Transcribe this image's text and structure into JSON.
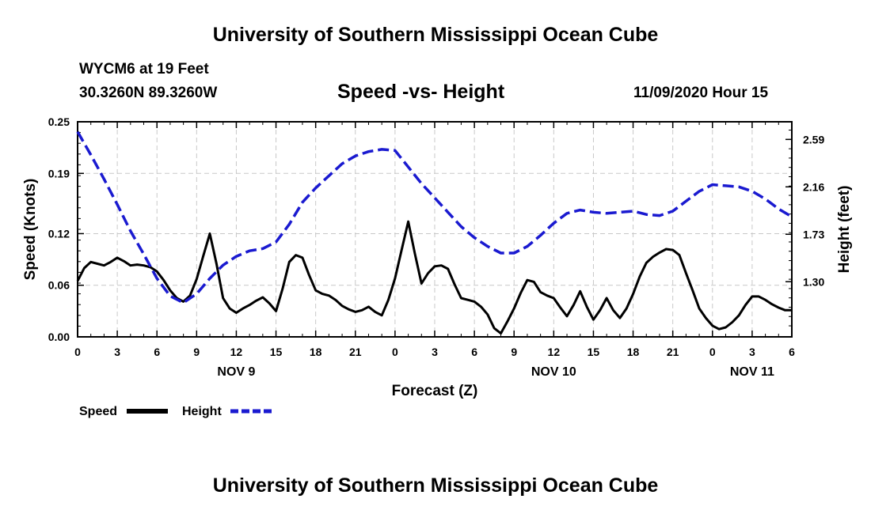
{
  "header": {
    "title": "University of Southern Mississippi Ocean Cube"
  },
  "footer": {
    "title": "University of Southern Mississippi Ocean Cube"
  },
  "station": {
    "name": "WYCM6 at 19 Feet",
    "coords": "30.3260N 89.3260W"
  },
  "chart_data": {
    "type": "line",
    "title": "Speed -vs- Height",
    "date_label": "11/09/2020 Hour 15",
    "xlabel": "Forecast (Z)",
    "ylabel_left": "Speed (Knots)",
    "ylabel_right": "Height (feet)",
    "x_range": [
      0,
      54
    ],
    "x_tick_labels": [
      "0",
      "3",
      "6",
      "9",
      "12",
      "15",
      "18",
      "21",
      "0",
      "3",
      "6",
      "9",
      "12",
      "15",
      "18",
      "21",
      "0",
      "3",
      "6"
    ],
    "date_labels": [
      {
        "label": "NOV 9",
        "hour_index": 12
      },
      {
        "label": "NOV 10",
        "hour_index": 36
      },
      {
        "label": "NOV 11",
        "hour_index": 51
      }
    ],
    "y_left": {
      "min": 0,
      "max": 0.25,
      "ticks": [
        0.0,
        0.06,
        0.12,
        0.19,
        0.25
      ],
      "tick_labels": [
        "0.00",
        "0.06",
        "0.12",
        "0.19",
        "0.25"
      ]
    },
    "y_right": {
      "min": 0.8,
      "max": 2.75,
      "ticks": [
        1.3,
        1.73,
        2.16,
        2.59
      ],
      "tick_labels": [
        "1.30",
        "1.73",
        "2.16",
        "2.59"
      ]
    },
    "grid": true,
    "legend": {
      "position": "bottom-left",
      "entries": [
        "Speed",
        "Height"
      ]
    },
    "series": [
      {
        "name": "Speed",
        "axis": "left",
        "color": "#000000",
        "style": "solid",
        "x": [
          0,
          0.5,
          1,
          1.5,
          2,
          2.5,
          3,
          3.5,
          4,
          4.5,
          5,
          5.5,
          6,
          6.5,
          7,
          7.5,
          8,
          8.5,
          9,
          9.5,
          10,
          10.5,
          11,
          11.5,
          12,
          12.5,
          13,
          13.5,
          14,
          14.5,
          15,
          15.5,
          16,
          16.5,
          17,
          17.5,
          18,
          18.5,
          19,
          19.5,
          20,
          20.5,
          21,
          21.5,
          22,
          22.5,
          23,
          23.5,
          24,
          24.5,
          25,
          25.5,
          26,
          26.5,
          27,
          27.5,
          28,
          28.5,
          29,
          29.5,
          30,
          30.5,
          31,
          31.5,
          32,
          32.5,
          33,
          33.5,
          34,
          34.5,
          35,
          35.5,
          36,
          36.5,
          37,
          37.5,
          38,
          38.5,
          39,
          39.5,
          40,
          40.5,
          41,
          41.5,
          42,
          42.5,
          43,
          43.5,
          44,
          44.5,
          45,
          45.5,
          46,
          46.5,
          47,
          47.5,
          48,
          48.5,
          49,
          49.5,
          50,
          50.5,
          51,
          51.5,
          52,
          52.5,
          53,
          53.5,
          54
        ],
        "values": [
          0.065,
          0.08,
          0.087,
          0.085,
          0.083,
          0.087,
          0.092,
          0.088,
          0.083,
          0.084,
          0.083,
          0.081,
          0.076,
          0.066,
          0.054,
          0.045,
          0.041,
          0.048,
          0.067,
          0.094,
          0.12,
          0.085,
          0.045,
          0.033,
          0.028,
          0.033,
          0.037,
          0.042,
          0.046,
          0.039,
          0.03,
          0.056,
          0.087,
          0.095,
          0.092,
          0.072,
          0.054,
          0.05,
          0.048,
          0.043,
          0.036,
          0.032,
          0.029,
          0.031,
          0.035,
          0.029,
          0.025,
          0.043,
          0.068,
          0.101,
          0.134,
          0.097,
          0.062,
          0.074,
          0.082,
          0.083,
          0.079,
          0.061,
          0.045,
          0.043,
          0.041,
          0.035,
          0.026,
          0.01,
          0.004,
          0.018,
          0.033,
          0.051,
          0.066,
          0.064,
          0.052,
          0.048,
          0.045,
          0.034,
          0.024,
          0.037,
          0.053,
          0.035,
          0.02,
          0.031,
          0.045,
          0.031,
          0.022,
          0.033,
          0.05,
          0.07,
          0.086,
          0.093,
          0.098,
          0.102,
          0.101,
          0.095,
          0.074,
          0.054,
          0.033,
          0.022,
          0.013,
          0.009,
          0.011,
          0.017,
          0.025,
          0.037,
          0.047,
          0.047,
          0.043,
          0.038,
          0.034,
          0.031,
          0.031
        ]
      },
      {
        "name": "Height",
        "axis": "right",
        "color": "#1a1ad0",
        "style": "dashed",
        "x": [
          0,
          1,
          2,
          3,
          4,
          5,
          6,
          7,
          8,
          9,
          10,
          11,
          12,
          13,
          14,
          15,
          16,
          17,
          18,
          19,
          20,
          21,
          22,
          23,
          24,
          25,
          26,
          27,
          28,
          29,
          30,
          31,
          32,
          33,
          34,
          35,
          36,
          37,
          38,
          39,
          40,
          41,
          42,
          43,
          44,
          45,
          46,
          47,
          48,
          49,
          50,
          51,
          52,
          53,
          54
        ],
        "values": [
          2.66,
          2.45,
          2.23,
          2.0,
          1.76,
          1.55,
          1.33,
          1.17,
          1.11,
          1.19,
          1.33,
          1.45,
          1.53,
          1.58,
          1.6,
          1.66,
          1.82,
          2.02,
          2.15,
          2.26,
          2.37,
          2.44,
          2.48,
          2.5,
          2.49,
          2.34,
          2.19,
          2.06,
          1.93,
          1.8,
          1.7,
          1.62,
          1.56,
          1.56,
          1.62,
          1.72,
          1.83,
          1.92,
          1.95,
          1.93,
          1.92,
          1.93,
          1.94,
          1.91,
          1.9,
          1.94,
          2.03,
          2.12,
          2.18,
          2.17,
          2.16,
          2.12,
          2.05,
          1.96,
          1.89
        ]
      }
    ]
  }
}
